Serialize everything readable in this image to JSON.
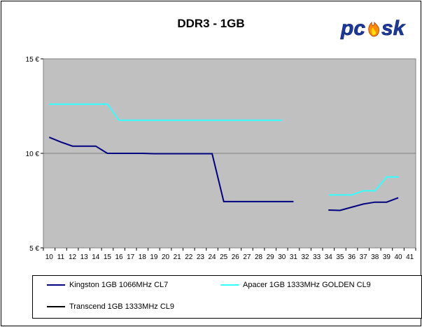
{
  "logo_text": "pcesk",
  "colors": {
    "plot_bg": "#c0c0c0",
    "kingston": "#000080",
    "apacer": "#33ffff",
    "transcend": "#000000"
  },
  "chart_data": {
    "type": "line",
    "title": "DDR3 - 1GB",
    "xlabel": "",
    "ylabel": "",
    "x": [
      10,
      11,
      12,
      13,
      14,
      15,
      16,
      17,
      18,
      19,
      20,
      21,
      22,
      23,
      24,
      25,
      26,
      27,
      28,
      29,
      30,
      31,
      32,
      33,
      34,
      35,
      36,
      37,
      38,
      39,
      40,
      41
    ],
    "x_tick_labels": [
      "10",
      "11",
      "12",
      "13",
      "14",
      "15",
      "16",
      "17",
      "18",
      "19",
      "20",
      "21",
      "22",
      "23",
      "24",
      "25",
      "26",
      "27",
      "28",
      "29",
      "30",
      "31",
      "32",
      "33",
      "34",
      "35",
      "36",
      "37",
      "38",
      "39",
      "40",
      "41"
    ],
    "ylim": [
      5,
      15
    ],
    "y_tick_labels": [
      {
        "value": 15,
        "label": "15 €"
      },
      {
        "value": 10,
        "label": "10 €"
      },
      {
        "value": 5,
        "label": "5 €"
      }
    ],
    "grid": "horizontal",
    "legend_position": "bottom",
    "series": [
      {
        "name": "Kingston 1GB 1066MHz CL7",
        "color": "#000080",
        "values": [
          10.85,
          10.6,
          10.38,
          10.38,
          10.38,
          10.0,
          10.0,
          10.0,
          10.0,
          9.98,
          9.98,
          9.98,
          9.98,
          9.98,
          9.98,
          7.45,
          7.45,
          7.45,
          7.45,
          7.45,
          7.45,
          7.45,
          null,
          null,
          7.0,
          6.98,
          7.15,
          7.32,
          7.42,
          7.42,
          7.65,
          null
        ]
      },
      {
        "name": "Apacer 1GB 1333MHz GOLDEN CL9",
        "color": "#33ffff",
        "values": [
          12.6,
          12.6,
          12.6,
          12.6,
          12.6,
          12.6,
          11.75,
          11.75,
          11.75,
          11.75,
          11.75,
          11.75,
          11.75,
          11.75,
          11.75,
          11.75,
          11.75,
          11.75,
          11.75,
          11.75,
          11.75,
          null,
          null,
          null,
          7.8,
          7.8,
          7.8,
          8.02,
          8.02,
          8.75,
          8.75,
          null
        ]
      },
      {
        "name": "Transcend 1GB 1333MHz CL9",
        "color": "#000000",
        "values": [
          null,
          null,
          null,
          null,
          null,
          null,
          null,
          null,
          null,
          null,
          null,
          null,
          null,
          null,
          null,
          null,
          null,
          null,
          null,
          null,
          null,
          null,
          null,
          null,
          null,
          null,
          null,
          null,
          null,
          null,
          null,
          null
        ]
      }
    ]
  }
}
